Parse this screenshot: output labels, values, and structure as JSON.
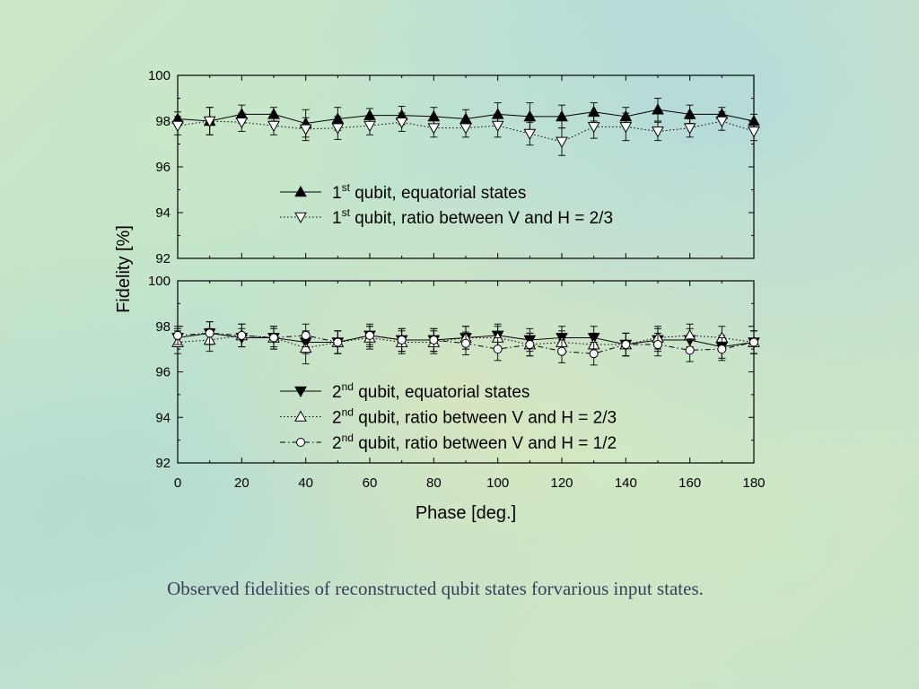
{
  "caption": "Observed fidelities of reconstructed qubit states forvarious input states.",
  "colors": {
    "axis": "#000000",
    "caption": "#3a3f5a"
  },
  "chart_data": {
    "type": "line",
    "xlabel": "Phase [deg.]",
    "ylabel": "Fidelity [%]",
    "xlim": [
      0,
      180
    ],
    "xticks": [
      0,
      20,
      40,
      60,
      80,
      100,
      120,
      140,
      160,
      180
    ],
    "x": [
      0,
      10,
      20,
      30,
      40,
      50,
      60,
      70,
      80,
      90,
      100,
      110,
      120,
      130,
      140,
      150,
      160,
      170,
      180
    ],
    "panels": [
      {
        "ylim": [
          92,
          100
        ],
        "yticks": [
          92,
          94,
          96,
          98,
          100
        ],
        "series": [
          {
            "name_prefix": "1",
            "name_sup": "st",
            "name_rest": " qubit, equatorial states",
            "marker": "triangle-up-filled",
            "line": "solid",
            "values": [
              98.1,
              98.0,
              98.3,
              98.3,
              97.9,
              98.1,
              98.25,
              98.25,
              98.2,
              98.1,
              98.3,
              98.2,
              98.2,
              98.4,
              98.2,
              98.5,
              98.3,
              98.3,
              98.0
            ],
            "err": [
              0.3,
              0.6,
              0.4,
              0.3,
              0.6,
              0.5,
              0.3,
              0.4,
              0.4,
              0.4,
              0.5,
              0.6,
              0.5,
              0.4,
              0.4,
              0.5,
              0.4,
              0.3,
              0.3
            ]
          },
          {
            "name_prefix": "1",
            "name_sup": "st",
            "name_rest": " qubit, ratio between V and H = 2/3",
            "marker": "triangle-down-open",
            "line": "dotted",
            "values": [
              97.8,
              98.0,
              97.95,
              97.8,
              97.65,
              97.7,
              97.8,
              97.95,
              97.7,
              97.7,
              97.8,
              97.45,
              97.1,
              97.75,
              97.75,
              97.55,
              97.7,
              98.0,
              97.55
            ],
            "err": [
              0.4,
              0.6,
              0.4,
              0.4,
              0.5,
              0.5,
              0.4,
              0.4,
              0.4,
              0.4,
              0.5,
              0.5,
              0.6,
              0.5,
              0.6,
              0.4,
              0.4,
              0.4,
              0.4
            ]
          }
        ]
      },
      {
        "ylim": [
          92,
          100
        ],
        "yticks": [
          92,
          94,
          96,
          98,
          100
        ],
        "series": [
          {
            "name_prefix": "2",
            "name_sup": "nd",
            "name_rest": " qubit, equatorial states",
            "marker": "triangle-down-filled",
            "line": "solid",
            "values": [
              97.5,
              97.7,
              97.5,
              97.5,
              97.3,
              97.3,
              97.6,
              97.4,
              97.4,
              97.5,
              97.6,
              97.4,
              97.5,
              97.5,
              97.2,
              97.4,
              97.4,
              97.1,
              97.3
            ],
            "err": [
              0.4,
              0.5,
              0.4,
              0.4,
              0.5,
              0.5,
              0.4,
              0.5,
              0.5,
              0.5,
              0.5,
              0.5,
              0.5,
              0.5,
              0.5,
              0.5,
              0.5,
              0.5,
              0.5
            ]
          },
          {
            "name_prefix": "2",
            "name_sup": "nd",
            "name_rest": " qubit, ratio between V and H = 2/3",
            "marker": "triangle-up-open",
            "line": "dotted",
            "values": [
              97.3,
              97.4,
              97.6,
              97.5,
              97.05,
              97.3,
              97.5,
              97.3,
              97.3,
              97.5,
              97.5,
              97.2,
              97.3,
              97.2,
              97.2,
              97.5,
              97.6,
              97.5,
              97.3
            ],
            "err": [
              0.5,
              0.5,
              0.5,
              0.5,
              0.7,
              0.5,
              0.5,
              0.5,
              0.5,
              0.5,
              0.5,
              0.5,
              0.5,
              0.5,
              0.5,
              0.5,
              0.5,
              0.5,
              0.5
            ]
          },
          {
            "name_prefix": "2",
            "name_sup": "nd",
            "name_rest": " qubit, ratio between V and H = 1/2",
            "marker": "circle-open",
            "line": "dashdot",
            "values": [
              97.6,
              97.7,
              97.6,
              97.5,
              97.6,
              97.3,
              97.6,
              97.4,
              97.4,
              97.25,
              97.0,
              97.2,
              96.9,
              96.8,
              97.2,
              97.2,
              96.95,
              97.0,
              97.3
            ],
            "err": [
              0.4,
              0.5,
              0.5,
              0.5,
              0.5,
              0.5,
              0.5,
              0.5,
              0.5,
              0.5,
              0.5,
              0.5,
              0.5,
              0.5,
              0.5,
              0.5,
              0.5,
              0.5,
              0.5
            ]
          }
        ]
      }
    ]
  }
}
